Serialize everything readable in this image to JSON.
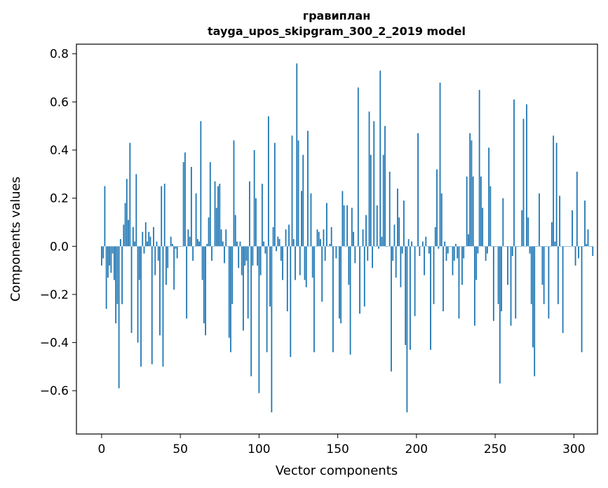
{
  "chart_data": {
    "type": "bar",
    "title": "гравиплан",
    "subtitle": "tayga_upos_skipgram_300_2_2019 model",
    "xlabel": "Vector components",
    "ylabel": "Components values",
    "xlim": [
      -16,
      315
    ],
    "ylim": [
      -0.78,
      0.84
    ],
    "xticks": [
      0,
      50,
      100,
      150,
      200,
      250,
      300
    ],
    "yticks": [
      -0.6,
      -0.4,
      -0.2,
      0.0,
      0.2,
      0.4,
      0.6,
      0.8
    ],
    "ytick_labels": [
      "−0.6",
      "−0.4",
      "−0.2",
      "0.0",
      "0.2",
      "0.4",
      "0.6",
      "0.8"
    ],
    "grid": false,
    "legend": "none",
    "bar_color": "#1f77b4",
    "series": [
      {
        "values": [
          -0.08,
          -0.05,
          0.25,
          -0.26,
          -0.13,
          -0.08,
          -0.11,
          -0.03,
          -0.14,
          -0.32,
          -0.24,
          -0.59,
          0.03,
          -0.24,
          0.09,
          0.18,
          0.28,
          0.11,
          0.43,
          -0.36,
          0.08,
          0.02,
          0.3,
          -0.4,
          -0.14,
          -0.5,
          0.06,
          -0.03,
          0.1,
          0.02,
          0.06,
          0.04,
          -0.49,
          0.08,
          -0.12,
          0.02,
          -0.06,
          -0.37,
          0.25,
          -0.5,
          0.26,
          -0.16,
          -0.09,
          0.0,
          0.04,
          0.01,
          -0.18,
          -0.01,
          -0.05,
          0.0,
          0.0,
          0.0,
          0.35,
          0.39,
          -0.3,
          0.07,
          0.04,
          0.33,
          -0.06,
          0.0,
          0.22,
          0.03,
          0.02,
          0.52,
          -0.14,
          -0.32,
          -0.37,
          0.01,
          0.12,
          0.35,
          -0.06,
          0.0,
          0.27,
          0.16,
          0.25,
          0.26,
          0.07,
          0.02,
          -0.07,
          0.07,
          0.0,
          -0.38,
          -0.44,
          -0.24,
          0.44,
          0.13,
          0.02,
          -0.09,
          0.02,
          -0.12,
          -0.35,
          -0.08,
          -0.06,
          -0.3,
          0.27,
          -0.54,
          -0.08,
          0.4,
          0.2,
          -0.08,
          -0.61,
          -0.12,
          0.26,
          0.02,
          -0.03,
          -0.44,
          0.54,
          -0.25,
          -0.69,
          0.08,
          0.43,
          -0.02,
          0.04,
          0.03,
          -0.06,
          -0.14,
          0.0,
          0.07,
          -0.27,
          0.09,
          -0.46,
          0.46,
          0.03,
          -0.14,
          0.76,
          0.44,
          -0.12,
          0.23,
          0.38,
          -0.14,
          -0.17,
          0.48,
          0.0,
          0.22,
          -0.13,
          -0.44,
          0.0,
          0.07,
          0.06,
          0.03,
          -0.23,
          0.07,
          -0.06,
          0.18,
          0.0,
          0.01,
          0.08,
          -0.44,
          0.0,
          -0.05,
          0.0,
          -0.3,
          -0.32,
          0.23,
          0.17,
          0.0,
          0.17,
          -0.16,
          -0.45,
          0.16,
          0.06,
          -0.07,
          0.0,
          0.66,
          -0.28,
          0.0,
          0.07,
          -0.25,
          0.13,
          -0.06,
          0.56,
          0.38,
          -0.09,
          0.52,
          0.0,
          0.17,
          -0.01,
          0.73,
          0.04,
          0.38,
          0.5,
          0.0,
          0.0,
          0.31,
          -0.52,
          -0.06,
          0.09,
          -0.13,
          0.24,
          0.12,
          -0.17,
          -0.03,
          0.19,
          -0.41,
          -0.69,
          0.03,
          -0.43,
          0.02,
          0.0,
          -0.29,
          0.0,
          0.47,
          -0.04,
          0.0,
          0.02,
          -0.12,
          0.04,
          0.0,
          -0.03,
          -0.43,
          0.0,
          -0.24,
          0.08,
          0.32,
          -0.01,
          0.68,
          0.22,
          -0.27,
          0.02,
          -0.06,
          -0.03,
          0.0,
          0.0,
          -0.12,
          -0.06,
          0.01,
          -0.05,
          -0.3,
          0.0,
          -0.16,
          -0.05,
          0.0,
          0.29,
          0.05,
          0.47,
          0.44,
          0.29,
          -0.33,
          -0.14,
          -0.03,
          0.65,
          0.29,
          0.16,
          0.0,
          -0.06,
          -0.03,
          0.41,
          0.25,
          0.0,
          -0.31,
          0.0,
          0.0,
          -0.24,
          -0.57,
          -0.27,
          0.2,
          0.0,
          0.0,
          -0.16,
          0.0,
          -0.33,
          -0.04,
          0.61,
          -0.3,
          0.0,
          0.0,
          0.0,
          0.15,
          0.53,
          0.0,
          0.59,
          0.12,
          -0.03,
          -0.24,
          -0.42,
          -0.54,
          0.0,
          0.0,
          0.22,
          0.0,
          -0.16,
          -0.24,
          0.0,
          0.0,
          -0.3,
          0.0,
          0.1,
          0.46,
          0.02,
          0.43,
          -0.24,
          0.21,
          0.0,
          -0.36,
          0.0,
          0.0,
          0.0,
          0.0,
          0.0,
          0.15,
          0.0,
          -0.08,
          0.31,
          -0.05,
          0.0,
          -0.44,
          0.0,
          0.19,
          0.01,
          0.07,
          0.0,
          0.0,
          -0.04
        ]
      }
    ]
  }
}
